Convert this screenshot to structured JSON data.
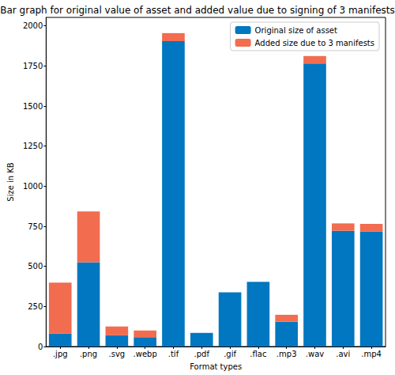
{
  "chart_data": {
    "type": "bar",
    "title": "Bar graph for original value of asset and added value due to signing of 3 manifests",
    "xlabel": "Format types",
    "ylabel": "Size in KB",
    "categories": [
      ".jpg",
      ".png",
      ".svg",
      ".webp",
      ".tif",
      ".pdf",
      ".gif",
      ".flac",
      ".mp3",
      ".wav",
      ".avi",
      ".mp4"
    ],
    "series": [
      {
        "name": "Original size of asset",
        "color": "#0077c0",
        "values": [
          82,
          525,
          70,
          58,
          1905,
          85,
          338,
          403,
          155,
          1765,
          722,
          718
        ]
      },
      {
        "name": "Added size due to 3 manifests",
        "color": "#f26c50",
        "values": [
          316,
          318,
          55,
          42,
          50,
          0,
          0,
          0,
          43,
          47,
          46,
          47
        ]
      }
    ],
    "ylim": [
      0,
      2053
    ],
    "yticks": [
      0,
      250,
      500,
      750,
      1000,
      1250,
      1500,
      1750,
      2000
    ],
    "stacked": true,
    "legend": "upper right",
    "grid": false
  }
}
